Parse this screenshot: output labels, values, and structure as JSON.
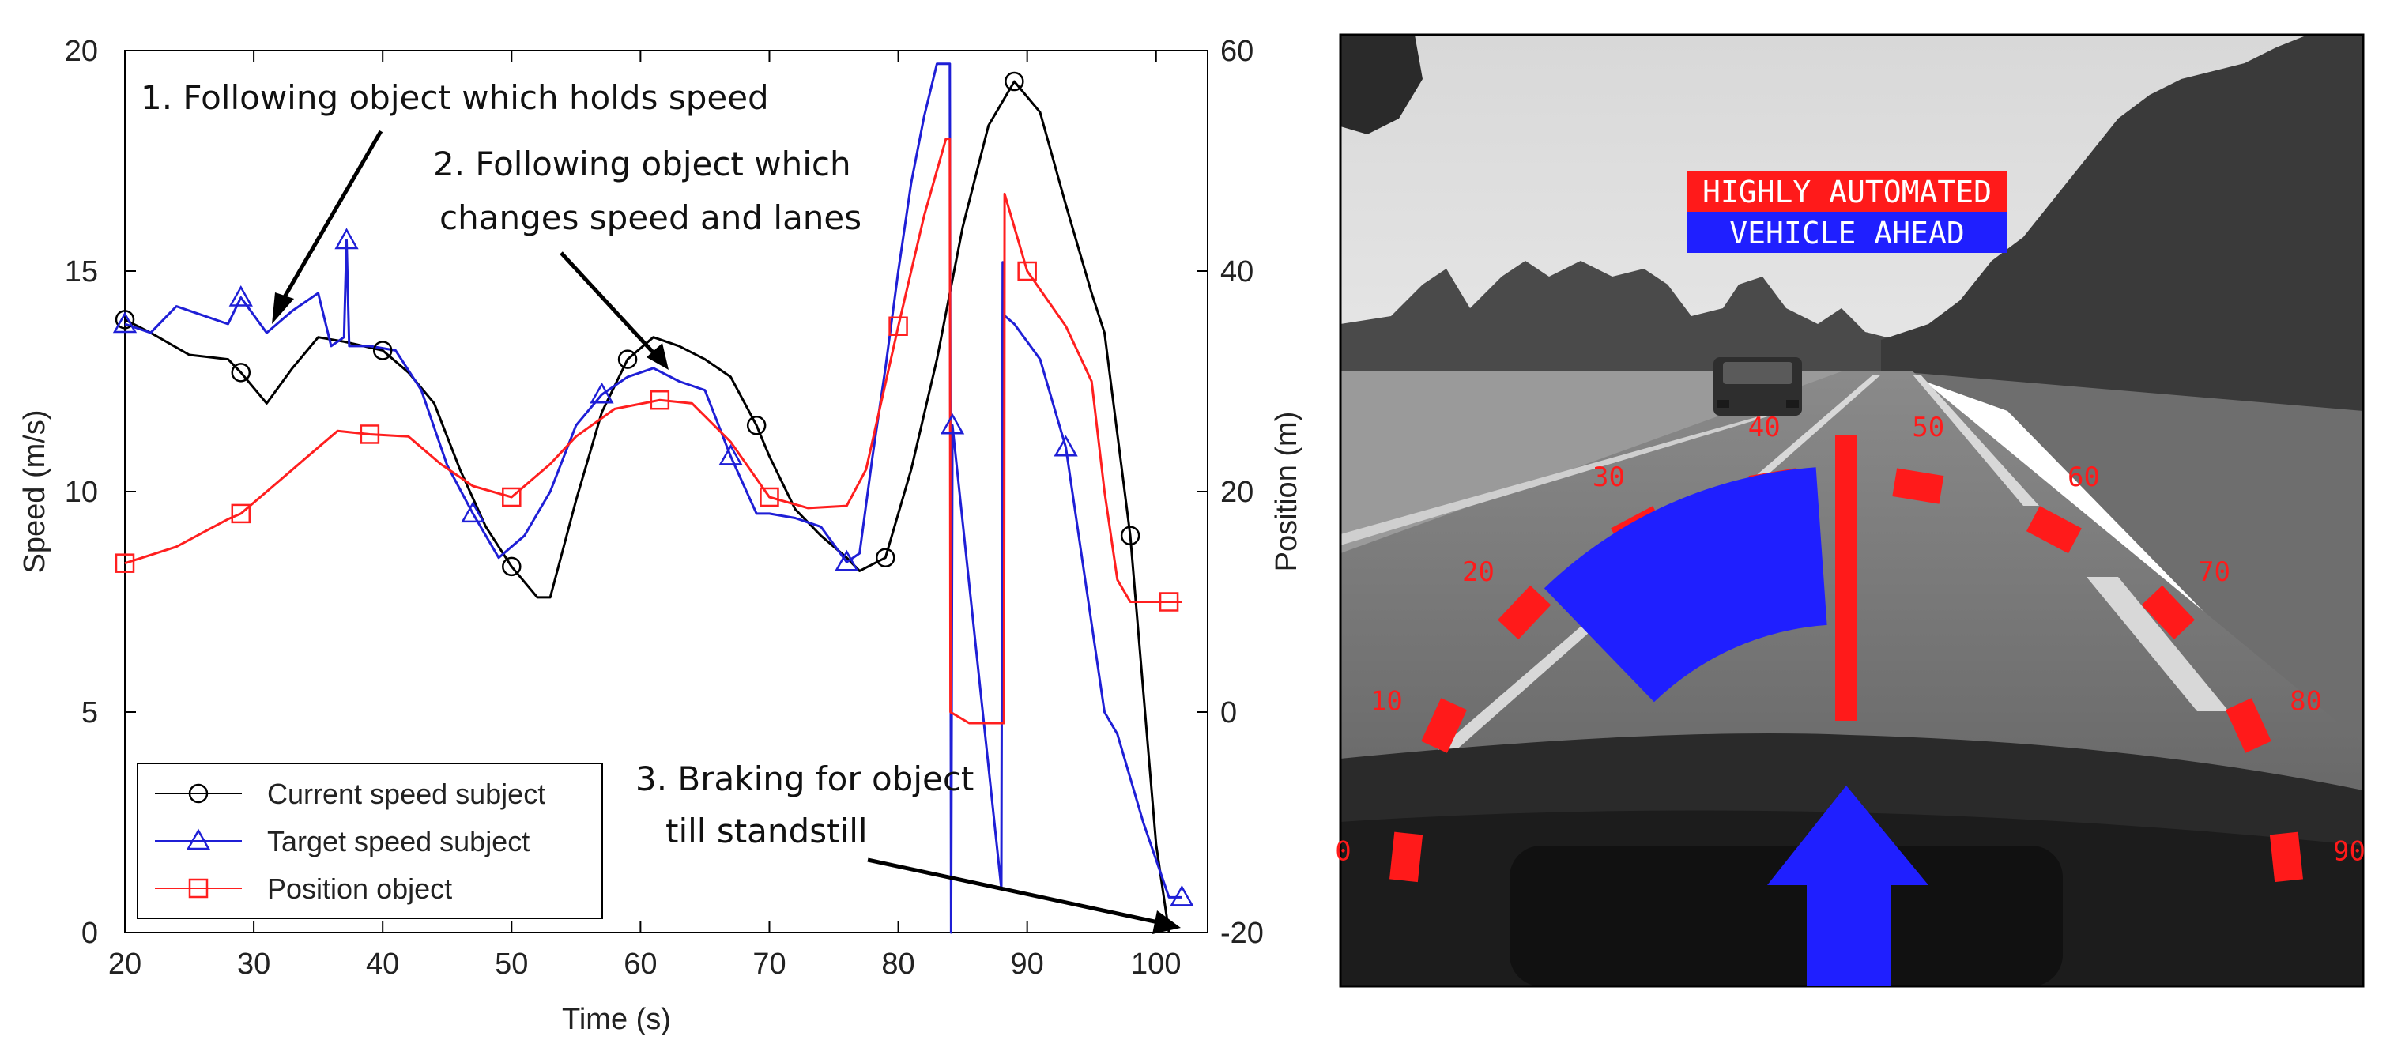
{
  "chart_data": {
    "type": "line",
    "xlabel": "Time (s)",
    "ylabel": "Speed (m/s)",
    "y2label": "Position (m)",
    "xlim": [
      20,
      104
    ],
    "ylim": [
      0,
      20
    ],
    "y2lim": [
      -20,
      60
    ],
    "xticks": [
      20,
      30,
      40,
      50,
      60,
      70,
      80,
      90,
      100
    ],
    "yticks": [
      0,
      5,
      10,
      15,
      20
    ],
    "y2ticks": [
      -20,
      0,
      20,
      40,
      60
    ],
    "grid": false,
    "legend_position": "bottom-left",
    "series": [
      {
        "name": "Current speed subject",
        "axis": "left",
        "color": "#000000",
        "marker": "circle",
        "x": [
          20,
          22,
          25,
          28,
          29,
          31,
          33,
          35,
          37,
          40,
          42,
          44,
          46,
          48,
          50,
          52,
          53,
          55,
          57,
          59,
          61,
          63,
          65,
          67,
          69,
          70,
          72,
          74,
          76,
          77,
          79,
          81,
          83,
          85,
          87,
          89,
          91,
          93,
          95,
          96,
          98,
          100,
          101
        ],
        "values": [
          13.9,
          13.6,
          13.1,
          13.0,
          12.7,
          12.0,
          12.8,
          13.5,
          13.4,
          13.2,
          12.7,
          12.0,
          10.5,
          9.2,
          8.3,
          7.6,
          7.6,
          9.8,
          11.8,
          13.0,
          13.5,
          13.3,
          13.0,
          12.6,
          11.5,
          10.8,
          9.6,
          9.0,
          8.5,
          8.2,
          8.5,
          10.5,
          13.0,
          16.0,
          18.3,
          19.3,
          18.6,
          16.5,
          14.5,
          13.6,
          9.0,
          2.0,
          0.0
        ]
      },
      {
        "name": "Target speed subject",
        "axis": "left",
        "color": "#1f1fd6",
        "marker": "triangle",
        "x": [
          20,
          22,
          24,
          26,
          28,
          29,
          31,
          33,
          35,
          36,
          37,
          37.2,
          37.4,
          39,
          41,
          43,
          45,
          47,
          49,
          51,
          53,
          55,
          57,
          59,
          61,
          63,
          65,
          67,
          69,
          70,
          72,
          74,
          76,
          77,
          78,
          79,
          80,
          81,
          82,
          83,
          83.6,
          84,
          84.1,
          84.2,
          88,
          88.1,
          88.2,
          89,
          91,
          93,
          95,
          96,
          97,
          99,
          101,
          102
        ],
        "values": [
          13.8,
          13.6,
          14.2,
          14.0,
          13.8,
          14.4,
          13.6,
          14.1,
          14.5,
          13.3,
          13.5,
          15.7,
          13.3,
          13.3,
          13.2,
          12.3,
          10.6,
          9.5,
          8.5,
          9.0,
          10.0,
          11.5,
          12.2,
          12.6,
          12.8,
          12.5,
          12.3,
          10.8,
          9.5,
          9.5,
          9.4,
          9.2,
          8.4,
          8.6,
          10.8,
          12.8,
          15.0,
          17.0,
          18.5,
          19.7,
          19.7,
          19.7,
          0.0,
          11.5,
          1.0,
          15.2,
          14.0,
          13.8,
          13.0,
          11.0,
          7.0,
          5.0,
          4.5,
          2.5,
          0.8,
          0.8
        ]
      },
      {
        "name": "Position object",
        "axis": "right",
        "color": "#ff1f1f",
        "marker": "square",
        "x": [
          20,
          24,
          28,
          29,
          32,
          35,
          36.5,
          39,
          42,
          44.5,
          47,
          50,
          53,
          55,
          58,
          61.5,
          64,
          67,
          70,
          73,
          76,
          77.5,
          80,
          82,
          83.7,
          84,
          84.05,
          85.5,
          88.2,
          88.25,
          90,
          93,
          95,
          96,
          97,
          98,
          101,
          102
        ],
        "values": [
          13.5,
          15.0,
          17.5,
          18.0,
          21.0,
          24.0,
          25.5,
          25.2,
          25.0,
          22.5,
          20.5,
          19.5,
          22.5,
          25.0,
          27.5,
          28.3,
          28.0,
          24.5,
          19.5,
          18.5,
          18.7,
          22.0,
          35.0,
          45.0,
          52.0,
          52.0,
          0.0,
          -1.0,
          -1.0,
          47.0,
          40.0,
          35.0,
          30.0,
          20.0,
          12.0,
          10.0,
          10.0,
          10.0
        ]
      }
    ],
    "annotations": [
      [
        "1. Following object which holds speed"
      ],
      [
        "2. Following object which",
        "changes speed and lanes"
      ],
      [
        "3. Braking for object",
        "till standstill"
      ]
    ]
  },
  "hud": {
    "line1": "HIGHLY AUTOMATED",
    "line2": "VEHICLE AHEAD",
    "line1_bg": "#ff1a1a",
    "line2_bg": "#1f1fff",
    "dial_labels": [
      "0",
      "10",
      "20",
      "30",
      "40",
      "50",
      "60",
      "70",
      "80",
      "90"
    ],
    "speed_fraction": 0.45,
    "arrow_icon": "up-arrow-icon"
  }
}
